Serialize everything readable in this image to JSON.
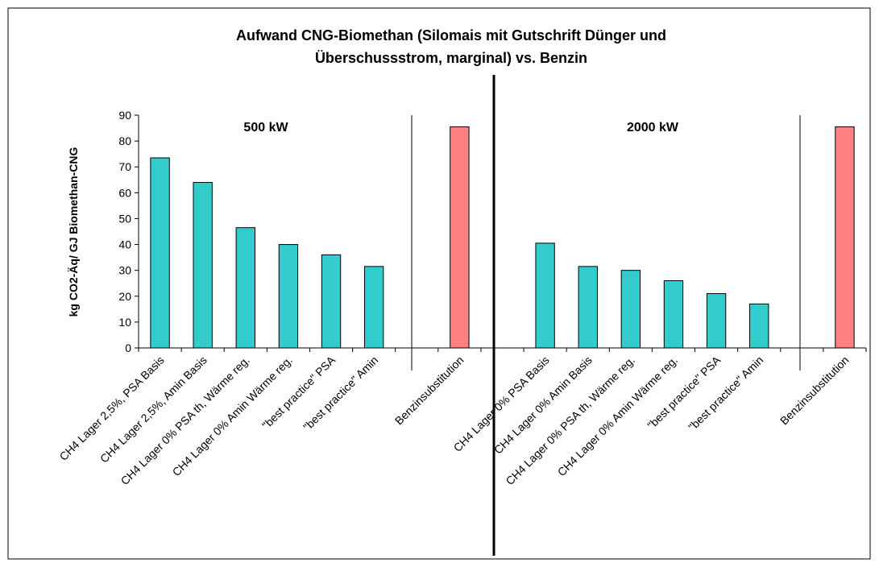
{
  "chart_data": {
    "type": "bar",
    "title_lines": [
      "Aufwand CNG-Biomethan (Silomais mit Gutschrift Dünger und",
      "Überschussstrom, marginal) vs. Benzin"
    ],
    "y_label": "kg CO2-Äq/ GJ Biomethan-CNG",
    "annotations": [
      "500 kW",
      "2000 kW"
    ],
    "categories": [
      "CH4 Lager 2,5%, PSA Basis",
      "CH4 Lager 2,5%, Amin Basis",
      "CH4 Lager 0% PSA th, Wärme reg.",
      "CH4 Lager 0% Amin Wärme reg.",
      "\"best practice\" PSA",
      "\"best practice\" Amin",
      null,
      "Benzinsubstitution",
      null,
      "CH4 Lager 0% PSA Basis",
      "CH4 Lager 0% Amin Basis",
      "CH4 Lager 0% PSA th, Wärme reg.",
      "CH4 Lager 0% Amin Wärme reg.",
      "\"best practice\" PSA",
      "\"best practice\" Amin",
      null,
      "Benzinsubstitution"
    ],
    "values": [
      73.5,
      64,
      46.5,
      40,
      36,
      31.5,
      null,
      85.5,
      null,
      40.5,
      31.5,
      30,
      26,
      21,
      17,
      null,
      85.5
    ],
    "colors": [
      "#33cccc",
      "#33cccc",
      "#33cccc",
      "#33cccc",
      "#33cccc",
      "#33cccc",
      null,
      "#ff8080",
      null,
      "#33cccc",
      "#33cccc",
      "#33cccc",
      "#33cccc",
      "#33cccc",
      "#33cccc",
      null,
      "#ff8080"
    ],
    "ylim": [
      0,
      90
    ],
    "yticks": [
      0,
      10,
      20,
      30,
      40,
      50,
      60,
      70,
      80,
      90
    ]
  }
}
